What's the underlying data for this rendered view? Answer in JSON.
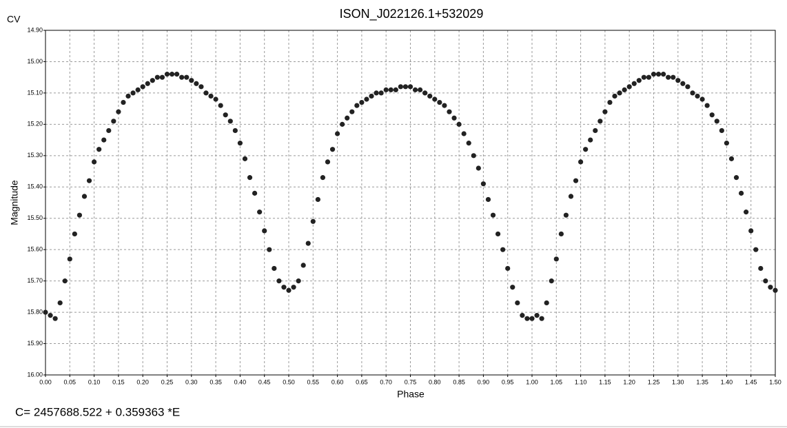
{
  "chart_data": {
    "type": "scatter",
    "title": "ISON_J022126.1+532029",
    "corner_label": "CV",
    "x_label": "Phase",
    "y_label": "Magnitude",
    "footer": "C= 2457688.522 + 0.359363 *E",
    "color": "#222222",
    "grid": true,
    "xlim": [
      0,
      1.5
    ],
    "ylim": [
      16.0,
      14.9
    ],
    "xticks": [
      {
        "value": 0,
        "label": "0.00"
      },
      {
        "value": 0.05,
        "label": "0.05"
      },
      {
        "value": 0.1,
        "label": "0.10"
      },
      {
        "value": 0.15,
        "label": "0.15"
      },
      {
        "value": 0.2,
        "label": "0.20"
      },
      {
        "value": 0.25,
        "label": "0.25"
      },
      {
        "value": 0.3,
        "label": "0.30"
      },
      {
        "value": 0.35,
        "label": "0.35"
      },
      {
        "value": 0.4,
        "label": "0.40"
      },
      {
        "value": 0.45,
        "label": "0.45"
      },
      {
        "value": 0.5,
        "label": "0.50"
      },
      {
        "value": 0.55,
        "label": "0.55"
      },
      {
        "value": 0.6,
        "label": "0.60"
      },
      {
        "value": 0.65,
        "label": "0.65"
      },
      {
        "value": 0.7,
        "label": "0.70"
      },
      {
        "value": 0.75,
        "label": "0.75"
      },
      {
        "value": 0.8,
        "label": "0.80"
      },
      {
        "value": 0.85,
        "label": "0.85"
      },
      {
        "value": 0.9,
        "label": "0.90"
      },
      {
        "value": 0.95,
        "label": "0.95"
      },
      {
        "value": 1,
        "label": "1.00"
      },
      {
        "value": 1.05,
        "label": "1.05"
      },
      {
        "value": 1.1,
        "label": "1.10"
      },
      {
        "value": 1.15,
        "label": "1.15"
      },
      {
        "value": 1.2,
        "label": "1.20"
      },
      {
        "value": 1.25,
        "label": "1.25"
      },
      {
        "value": 1.3,
        "label": "1.30"
      },
      {
        "value": 1.35,
        "label": "1.35"
      },
      {
        "value": 1.4,
        "label": "1.40"
      },
      {
        "value": 1.45,
        "label": "1.45"
      },
      {
        "value": 1.5,
        "label": "1.50"
      }
    ],
    "yticks": [
      {
        "value": 14.9,
        "label": "14.90"
      },
      {
        "value": 15,
        "label": "15.00"
      },
      {
        "value": 15.1,
        "label": "15.10"
      },
      {
        "value": 15.2,
        "label": "15.20"
      },
      {
        "value": 15.3,
        "label": "15.30"
      },
      {
        "value": 15.4,
        "label": "15.40"
      },
      {
        "value": 15.5,
        "label": "15.50"
      },
      {
        "value": 15.6,
        "label": "15.60"
      },
      {
        "value": 15.7,
        "label": "15.70"
      },
      {
        "value": 15.8,
        "label": "15.80"
      },
      {
        "value": 15.9,
        "label": "15.90"
      },
      {
        "value": 16,
        "label": "16.00"
      }
    ],
    "x": [
      0,
      0.01,
      0.02,
      0.03,
      0.04,
      0.05,
      0.06,
      0.07,
      0.08,
      0.09,
      0.1,
      0.11,
      0.12,
      0.13,
      0.14,
      0.15,
      0.16,
      0.17,
      0.18,
      0.19,
      0.2,
      0.21,
      0.22,
      0.23,
      0.24,
      0.25,
      0.26,
      0.27,
      0.28,
      0.29,
      0.3,
      0.31,
      0.32,
      0.33,
      0.34,
      0.35,
      0.36,
      0.37,
      0.38,
      0.39,
      0.4,
      0.41,
      0.42,
      0.43,
      0.44,
      0.45,
      0.46,
      0.47,
      0.48,
      0.49,
      0.5,
      0.51,
      0.52,
      0.53,
      0.54,
      0.55,
      0.56,
      0.57,
      0.58,
      0.59,
      0.6,
      0.61,
      0.62,
      0.63,
      0.64,
      0.65,
      0.66,
      0.67,
      0.68,
      0.69,
      0.7,
      0.71,
      0.72,
      0.73,
      0.74,
      0.75,
      0.76,
      0.77,
      0.78,
      0.79,
      0.8,
      0.81,
      0.82,
      0.83,
      0.84,
      0.85,
      0.86,
      0.87,
      0.88,
      0.89,
      0.9,
      0.91,
      0.92,
      0.93,
      0.94,
      0.95,
      0.96,
      0.97,
      0.98,
      0.99,
      1,
      1.01,
      1.02,
      1.03,
      1.04,
      1.05,
      1.06,
      1.07,
      1.08,
      1.09,
      1.1,
      1.11,
      1.12,
      1.13,
      1.14,
      1.15,
      1.16,
      1.17,
      1.18,
      1.19,
      1.2,
      1.21,
      1.22,
      1.23,
      1.24,
      1.25,
      1.26,
      1.27,
      1.28,
      1.29,
      1.3,
      1.31,
      1.32,
      1.33,
      1.34,
      1.35,
      1.36,
      1.37,
      1.38,
      1.39,
      1.4,
      1.41,
      1.42,
      1.43,
      1.44,
      1.45,
      1.46,
      1.47,
      1.48,
      1.49,
      1.5
    ],
    "values": [
      15.8,
      15.81,
      15.82,
      15.77,
      15.7,
      15.63,
      15.55,
      15.49,
      15.43,
      15.38,
      15.32,
      15.28,
      15.25,
      15.22,
      15.19,
      15.16,
      15.13,
      15.11,
      15.1,
      15.09,
      15.08,
      15.07,
      15.06,
      15.05,
      15.05,
      15.04,
      15.04,
      15.04,
      15.05,
      15.05,
      15.06,
      15.07,
      15.08,
      15.1,
      15.11,
      15.12,
      15.14,
      15.17,
      15.19,
      15.22,
      15.26,
      15.31,
      15.37,
      15.42,
      15.48,
      15.54,
      15.6,
      15.66,
      15.7,
      15.72,
      15.73,
      15.72,
      15.7,
      15.65,
      15.58,
      15.51,
      15.44,
      15.37,
      15.32,
      15.28,
      15.23,
      15.2,
      15.18,
      15.16,
      15.14,
      15.13,
      15.12,
      15.11,
      15.1,
      15.1,
      15.09,
      15.09,
      15.09,
      15.08,
      15.08,
      15.08,
      15.09,
      15.09,
      15.1,
      15.11,
      15.12,
      15.13,
      15.14,
      15.16,
      15.18,
      15.2,
      15.23,
      15.26,
      15.3,
      15.34,
      15.39,
      15.44,
      15.49,
      15.55,
      15.6,
      15.66,
      15.72,
      15.77,
      15.81,
      15.82,
      15.82,
      15.81,
      15.82,
      15.77,
      15.7,
      15.63,
      15.55,
      15.49,
      15.43,
      15.38,
      15.32,
      15.28,
      15.25,
      15.22,
      15.19,
      15.16,
      15.13,
      15.11,
      15.1,
      15.09,
      15.08,
      15.07,
      15.06,
      15.05,
      15.05,
      15.04,
      15.04,
      15.04,
      15.05,
      15.05,
      15.06,
      15.07,
      15.08,
      15.1,
      15.11,
      15.12,
      15.14,
      15.17,
      15.19,
      15.22,
      15.26,
      15.31,
      15.37,
      15.42,
      15.48,
      15.54,
      15.6,
      15.66,
      15.7,
      15.72,
      15.73
    ]
  }
}
